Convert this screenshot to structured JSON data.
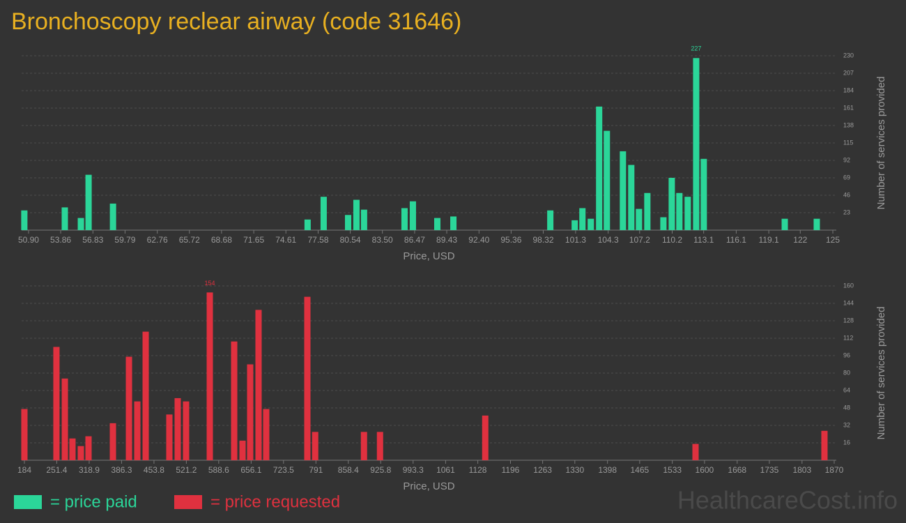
{
  "title": "Bronchoscopy reclear airway (code 31646)",
  "watermark": "HealthcareCost.info",
  "chart_data": [
    {
      "type": "bar",
      "name": "= price paid",
      "color": "#2bd699",
      "x_label": "Price, USD",
      "y_label": "Number of services provided",
      "grid": true,
      "x": [
        50.51,
        54.24,
        55.72,
        56.43,
        58.68,
        76.61,
        78.09,
        80.34,
        81.11,
        81.81,
        85.54,
        86.31,
        88.56,
        90.04,
        98.97,
        101.22,
        101.93,
        102.7,
        103.47,
        104.18,
        105.66,
        106.43,
        107.14,
        107.91,
        109.39,
        110.16,
        110.86,
        111.63,
        112.41,
        113.11,
        120.57,
        123.52
      ],
      "values": [
        26,
        30,
        16,
        73,
        35,
        14,
        44,
        20,
        40,
        27,
        29,
        38,
        16,
        18,
        26,
        13,
        29,
        15,
        163,
        131,
        104,
        86,
        28,
        49,
        17,
        69,
        49,
        44,
        227,
        94,
        15,
        15
      ],
      "xlim": [
        50.26,
        125.32
      ],
      "ylim": [
        0,
        230
      ],
      "xticks": [
        {
          "value": 50.9,
          "label": "50.90"
        },
        53.86,
        56.83,
        59.79,
        62.76,
        65.72,
        68.68,
        71.65,
        74.61,
        77.58,
        80.54,
        {
          "value": 83.5,
          "label": "83.50"
        },
        86.47,
        89.43,
        {
          "value": 92.4,
          "label": "92.40"
        },
        95.36,
        98.32,
        101.3,
        104.3,
        107.2,
        110.2,
        113.1,
        116.1,
        119.1,
        122,
        125
      ],
      "yticks": [
        23,
        46,
        69,
        92,
        115,
        138,
        161,
        184,
        207,
        230
      ]
    },
    {
      "type": "bar",
      "name": "= price requested",
      "color": "#e0313f",
      "x_label": "Price, USD",
      "y_label": "Number of services provided",
      "grid": true,
      "x": [
        184,
        250.7,
        268.2,
        284.1,
        301.5,
        317.5,
        368.3,
        401.7,
        419.1,
        436.5,
        485.8,
        503.2,
        520.6,
        570.0,
        620.8,
        638.2,
        654.1,
        671.5,
        687.5,
        773.1,
        789.4,
        891.0,
        924.4,
        1143.5,
        1581.3,
        1849.7
      ],
      "values": [
        47,
        104,
        75,
        20,
        13,
        22,
        34,
        95,
        54,
        118,
        42,
        57,
        54,
        154,
        109,
        18,
        88,
        138,
        47,
        150,
        26,
        26,
        26,
        41,
        15,
        27
      ],
      "xlim": [
        178.2,
        1874.4
      ],
      "ylim": [
        0,
        160
      ],
      "xticks": [
        184,
        251.4,
        318.9,
        386.3,
        453.8,
        521.2,
        588.6,
        656.1,
        723.5,
        791,
        858.4,
        925.8,
        993.3,
        1061,
        1128,
        1196,
        1263,
        1330,
        1398,
        1465,
        1533,
        1600,
        1668,
        1735,
        1803,
        1870
      ],
      "yticks": [
        16,
        32,
        48,
        64,
        80,
        96,
        112,
        128,
        144,
        160
      ]
    }
  ]
}
